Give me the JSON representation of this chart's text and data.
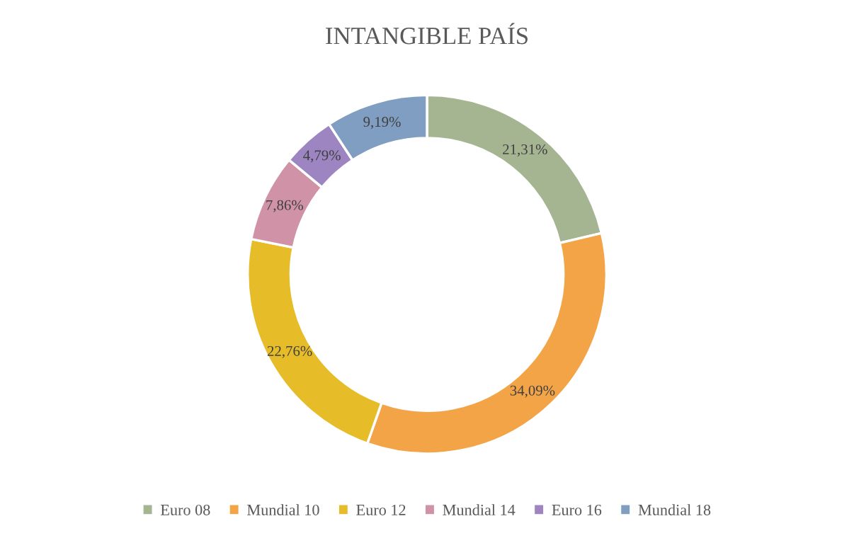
{
  "chart_data": {
    "type": "donut",
    "title": "INTANGIBLE PAÍS",
    "categories": [
      "Euro 08",
      "Mundial 10",
      "Euro 12",
      "Mundial 14",
      "Euro 16",
      "Mundial 18"
    ],
    "values": [
      21.31,
      34.09,
      22.76,
      7.86,
      4.79,
      9.19
    ],
    "value_labels": [
      "21,31%",
      "34,09%",
      "22,76%",
      "7,86%",
      "4,79%",
      "9,19%"
    ],
    "colors": [
      "#a5b592",
      "#f3a447",
      "#e7bc29",
      "#d092a7",
      "#9c85c0",
      "#809ec2"
    ],
    "legend": "bottom"
  }
}
